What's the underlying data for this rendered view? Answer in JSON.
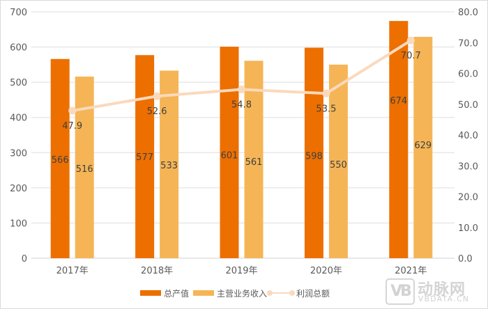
{
  "chart_data": {
    "type": "bar+line",
    "title": "",
    "categories": [
      "2017年",
      "2018年",
      "2019年",
      "2020年",
      "2021年"
    ],
    "series": [
      {
        "name": "总产值",
        "type": "bar",
        "axis": "left",
        "color": "#ec6f00",
        "values": [
          566,
          577,
          601,
          598,
          674
        ]
      },
      {
        "name": "主营业务收入",
        "type": "bar",
        "axis": "left",
        "color": "#f5b556",
        "values": [
          516,
          533,
          561,
          550,
          629
        ]
      },
      {
        "name": "利润总额",
        "type": "line",
        "axis": "right",
        "color": "#fbd9bd",
        "values": [
          47.9,
          52.6,
          54.8,
          53.5,
          70.7
        ]
      }
    ],
    "left_axis": {
      "min": 0,
      "max": 700,
      "step": 100,
      "ticks": [
        "0",
        "100",
        "200",
        "300",
        "400",
        "500",
        "600",
        "700"
      ]
    },
    "right_axis": {
      "min": 0,
      "max": 80,
      "step": 10,
      "ticks": [
        "0.0",
        "10.0",
        "20.0",
        "30.0",
        "40.0",
        "50.0",
        "60.0",
        "70.0",
        "80.0"
      ]
    },
    "grid": true,
    "legend_position": "bottom",
    "xlabel": "",
    "ylabel": ""
  },
  "legend": {
    "items": [
      {
        "label": "总产值",
        "color": "#ec6f00"
      },
      {
        "label": "主营业务收入",
        "color": "#f5b556"
      },
      {
        "label": "利润总额",
        "color": "#fbd9bd"
      }
    ]
  },
  "watermark": {
    "logo_text": "VB",
    "name_cn": "动脉网",
    "name_en": "VBDATA.CN"
  }
}
